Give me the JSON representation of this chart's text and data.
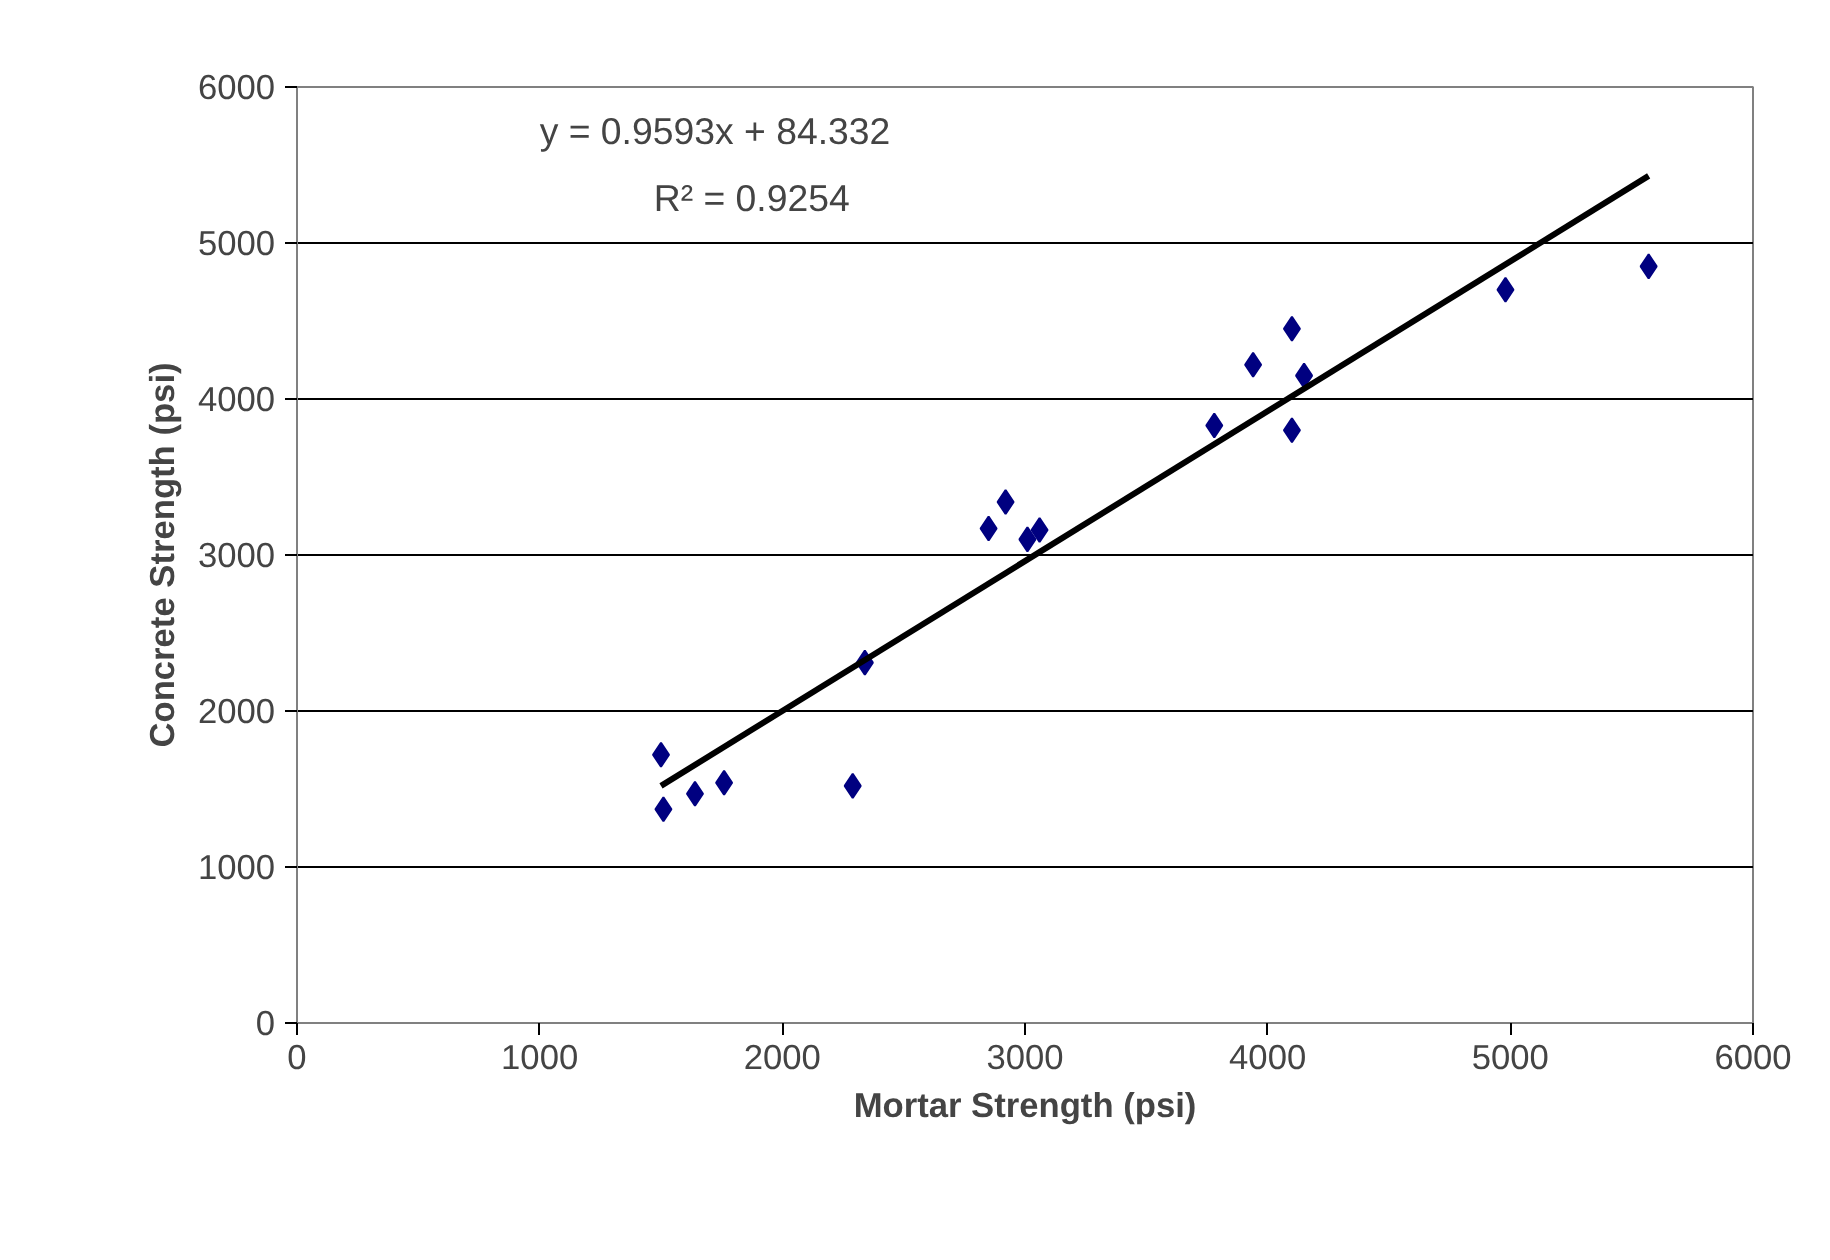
{
  "chart_data": {
    "type": "scatter",
    "xlabel": "Mortar Strength (psi)",
    "ylabel": "Concrete Strength (psi)",
    "xlim": [
      0,
      6000
    ],
    "ylim": [
      0,
      6000
    ],
    "xticks": [
      0,
      1000,
      2000,
      3000,
      4000,
      5000,
      6000
    ],
    "yticks": [
      0,
      1000,
      2000,
      3000,
      4000,
      5000,
      6000
    ],
    "grid": "y",
    "marker": "diamond",
    "series": [
      {
        "color": "#000080",
        "x": [
          1500,
          1510,
          1640,
          1760,
          2290,
          2340,
          2850,
          2920,
          3010,
          3060,
          3780,
          3940,
          4100,
          4100,
          4150,
          4980,
          5570
        ],
        "values": [
          1720,
          1370,
          1470,
          1540,
          1520,
          2310,
          3170,
          3340,
          3100,
          3160,
          3830,
          4220,
          4450,
          3800,
          4150,
          4700,
          4850
        ]
      },
      {
        "type": "line",
        "marker": "none",
        "color": "#000000",
        "x": [
          1500,
          5570
        ],
        "values": [
          1520,
          5430
        ]
      }
    ],
    "annotations": [
      "y = 0.9593x + 84.332",
      "R² = 0.9254"
    ]
  }
}
